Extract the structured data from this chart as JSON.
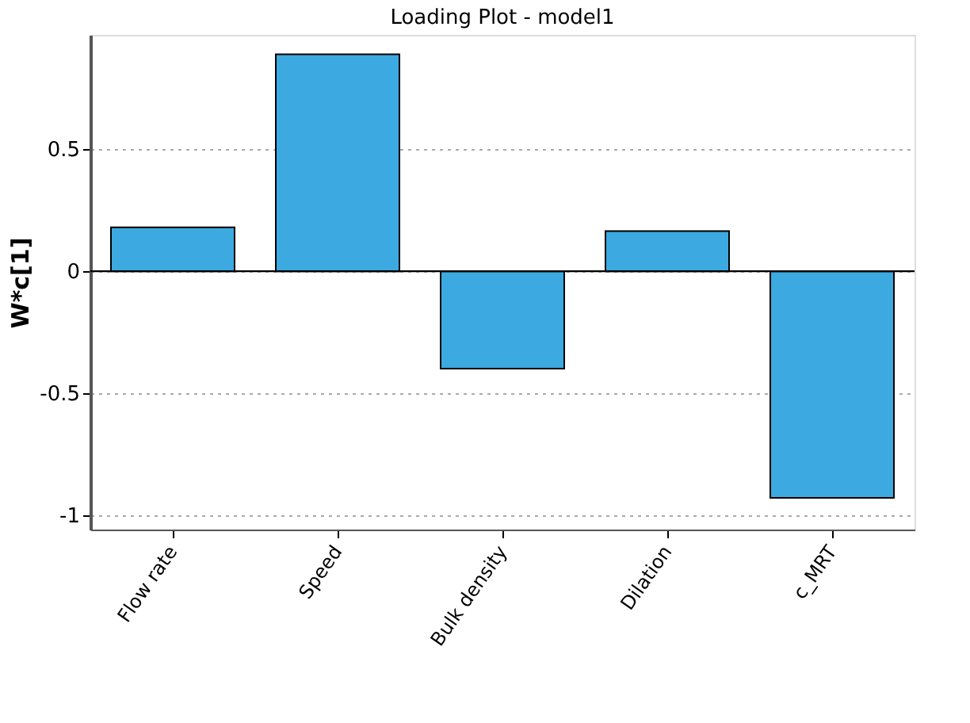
{
  "chart_data": {
    "type": "bar",
    "title": "Loading Plot - model1",
    "ylabel": "W*c[1]",
    "categories": [
      "Flow rate",
      "Speed",
      "Bulk density",
      "Dilation",
      "c_MRT"
    ],
    "values": [
      0.18,
      0.89,
      -0.4,
      0.165,
      -0.93
    ],
    "color": "#3ca9e0",
    "ylim": [
      -1.06,
      0.97
    ],
    "yticks": [
      -1,
      -0.5,
      0,
      0.5
    ],
    "grid": "y",
    "ref_lines": [
      {
        "axis": "y",
        "value": 0,
        "label": null
      }
    ]
  }
}
